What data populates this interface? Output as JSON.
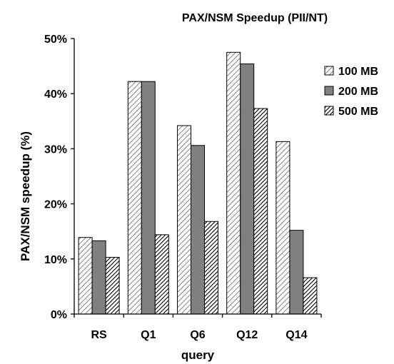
{
  "chart_data": {
    "type": "bar",
    "title": "PAX/NSM Speedup (PII/NT)",
    "xlabel": "query",
    "ylabel": "PAX/NSM speedup (%)",
    "categories": [
      "RS",
      "Q1",
      "Q6",
      "Q12",
      "Q14"
    ],
    "y_ticks": [
      "0%",
      "10%",
      "20%",
      "30%",
      "40%",
      "50%"
    ],
    "ylim": [
      0,
      50
    ],
    "grid": false,
    "legend_position": "right",
    "series": [
      {
        "name": "100 MB",
        "pattern": "light-diagonal",
        "values": [
          13.9,
          42.2,
          34.2,
          47.5,
          31.3
        ]
      },
      {
        "name": "200 MB",
        "pattern": "dark-gray",
        "values": [
          13.3,
          42.2,
          30.6,
          45.4,
          15.2
        ]
      },
      {
        "name": "500 MB",
        "pattern": "dense-diagonal",
        "values": [
          10.3,
          14.4,
          16.8,
          37.3,
          6.6
        ]
      }
    ]
  }
}
